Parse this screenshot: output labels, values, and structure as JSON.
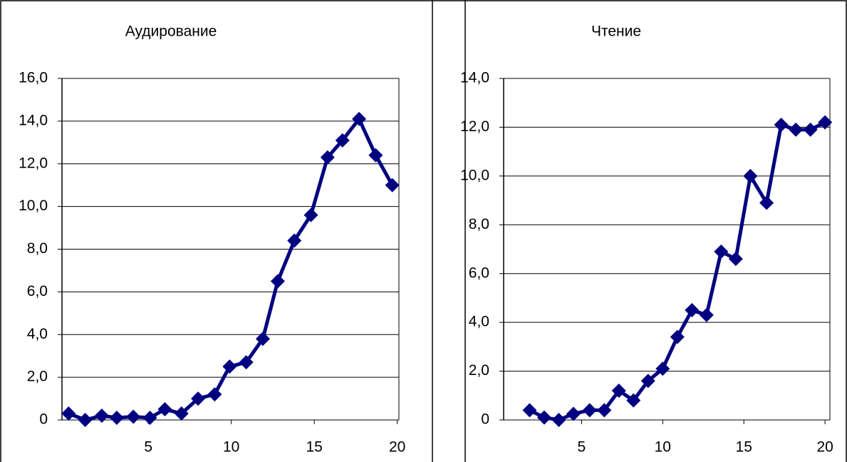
{
  "chart_data": [
    {
      "type": "line",
      "title": "Аудирование",
      "x": [
        0.2,
        1.2,
        2.2,
        3.1,
        4.1,
        5.1,
        6.0,
        7.0,
        8.0,
        9.0,
        9.9,
        10.9,
        11.9,
        12.8,
        13.8,
        14.8,
        15.8,
        16.7,
        17.7,
        18.7,
        19.7
      ],
      "series": [
        {
          "color": "#000080",
          "values": [
            0.3,
            0,
            0.2,
            0.1,
            0.15,
            0.1,
            0.5,
            0.3,
            1.0,
            1.2,
            2.5,
            2.7,
            3.8,
            6.5,
            8.4,
            9.6,
            12.3,
            13.1,
            14.1,
            12.4,
            11.0
          ]
        }
      ],
      "xlim": [
        -0.2,
        20.1
      ],
      "xticks": [
        5,
        10,
        15,
        20
      ],
      "ylim": [
        0,
        16
      ],
      "yticks": [
        0,
        {
          "value": 2,
          "label": "2,0"
        },
        {
          "value": 4,
          "label": "4,0"
        },
        {
          "value": 6,
          "label": "6,0"
        },
        {
          "value": 8,
          "label": "8,0"
        },
        {
          "value": 10,
          "label": "10,0"
        },
        {
          "value": 12,
          "label": "12,0"
        },
        {
          "value": 14,
          "label": "14,0"
        },
        {
          "value": 16,
          "label": "16,0"
        }
      ],
      "grid": true
    },
    {
      "type": "line",
      "title": "Чтение",
      "x": [
        1.8,
        2.7,
        3.6,
        4.5,
        5.5,
        6.4,
        7.3,
        8.2,
        9.1,
        10.0,
        10.9,
        11.8,
        12.7,
        13.6,
        14.5,
        15.4,
        16.4,
        17.3,
        18.2,
        19.1,
        20.0
      ],
      "series": [
        {
          "color": "#000080",
          "values": [
            0.4,
            0.1,
            0,
            0.25,
            0.4,
            0.4,
            1.2,
            0.8,
            1.6,
            2.1,
            3.4,
            4.5,
            4.3,
            6.9,
            6.6,
            10.0,
            8.9,
            12.1,
            11.9,
            11.9,
            12.2
          ]
        }
      ],
      "xlim": [
        0.2,
        20.3
      ],
      "xticks": [
        5,
        10,
        15,
        20
      ],
      "ylim": [
        0,
        14
      ],
      "yticks": [
        0,
        {
          "value": 2,
          "label": "2,0"
        },
        {
          "value": 4,
          "label": "4,0"
        },
        {
          "value": 6,
          "label": "6,0"
        },
        {
          "value": 8,
          "label": "8,0"
        },
        {
          "value": 10,
          "label": "10,0"
        },
        {
          "value": 12,
          "label": "12,0"
        },
        {
          "value": 14,
          "label": "14,0"
        }
      ],
      "grid": true
    }
  ]
}
